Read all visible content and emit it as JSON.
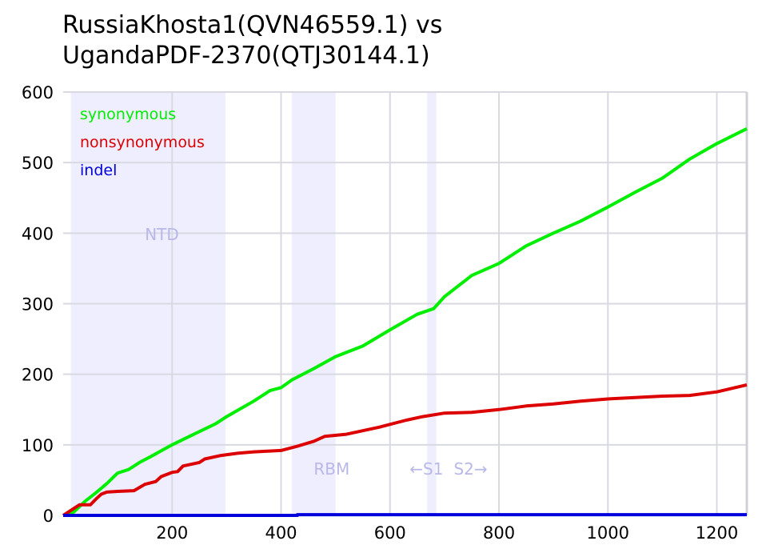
{
  "chart_data": {
    "type": "line",
    "title_lines": [
      "RussiaKhosta1(QVN46559.1) vs",
      "UgandaPDF-2370(QTJ30144.1)"
    ],
    "xlabel": "",
    "ylabel": "",
    "xlim": [
      0,
      1255
    ],
    "ylim": [
      0,
      600
    ],
    "x_ticks": [
      200,
      400,
      600,
      800,
      1000,
      1200
    ],
    "y_ticks": [
      0,
      100,
      200,
      300,
      400,
      500,
      600
    ],
    "grid": true,
    "legend_position": "top-left",
    "regions": [
      {
        "label": "NTD",
        "start": 14,
        "end": 298,
        "label_at": [
          150,
          390
        ]
      },
      {
        "label": "RBM",
        "start": 420,
        "end": 500,
        "label_at": [
          460,
          58
        ]
      },
      {
        "label": "←S1",
        "start": 668,
        "end": 685,
        "label_at": [
          636,
          58
        ]
      },
      {
        "label": "S2→",
        "start": 685,
        "end": 685,
        "label_at": [
          717,
          58
        ]
      }
    ],
    "series": [
      {
        "name": "synonymous",
        "color": "#00ee00",
        "points": [
          [
            0,
            0
          ],
          [
            20,
            5
          ],
          [
            40,
            20
          ],
          [
            60,
            32
          ],
          [
            80,
            45
          ],
          [
            100,
            60
          ],
          [
            120,
            65
          ],
          [
            140,
            75
          ],
          [
            160,
            83
          ],
          [
            200,
            100
          ],
          [
            240,
            115
          ],
          [
            280,
            130
          ],
          [
            300,
            140
          ],
          [
            350,
            162
          ],
          [
            380,
            177
          ],
          [
            400,
            181
          ],
          [
            420,
            192
          ],
          [
            460,
            208
          ],
          [
            500,
            225
          ],
          [
            550,
            240
          ],
          [
            600,
            263
          ],
          [
            650,
            285
          ],
          [
            680,
            293
          ],
          [
            700,
            310
          ],
          [
            750,
            340
          ],
          [
            800,
            357
          ],
          [
            850,
            382
          ],
          [
            900,
            400
          ],
          [
            950,
            417
          ],
          [
            1000,
            437
          ],
          [
            1050,
            458
          ],
          [
            1100,
            478
          ],
          [
            1150,
            505
          ],
          [
            1200,
            527
          ],
          [
            1255,
            548
          ]
        ]
      },
      {
        "name": "nonsynonymous",
        "color": "#dd0000",
        "points": [
          [
            0,
            0
          ],
          [
            20,
            10
          ],
          [
            30,
            15
          ],
          [
            50,
            15
          ],
          [
            60,
            23
          ],
          [
            70,
            30
          ],
          [
            80,
            33
          ],
          [
            100,
            34
          ],
          [
            130,
            35
          ],
          [
            150,
            44
          ],
          [
            170,
            48
          ],
          [
            180,
            55
          ],
          [
            200,
            61
          ],
          [
            210,
            62
          ],
          [
            220,
            70
          ],
          [
            250,
            75
          ],
          [
            260,
            80
          ],
          [
            290,
            85
          ],
          [
            320,
            88
          ],
          [
            350,
            90
          ],
          [
            400,
            92
          ],
          [
            430,
            98
          ],
          [
            460,
            105
          ],
          [
            480,
            112
          ],
          [
            520,
            115
          ],
          [
            550,
            120
          ],
          [
            580,
            125
          ],
          [
            630,
            135
          ],
          [
            660,
            140
          ],
          [
            700,
            145
          ],
          [
            750,
            146
          ],
          [
            800,
            150
          ],
          [
            850,
            155
          ],
          [
            900,
            158
          ],
          [
            950,
            162
          ],
          [
            1000,
            165
          ],
          [
            1050,
            167
          ],
          [
            1100,
            169
          ],
          [
            1150,
            170
          ],
          [
            1200,
            175
          ],
          [
            1255,
            185
          ]
        ]
      },
      {
        "name": "indel",
        "color": "#0000dd",
        "points": [
          [
            0,
            0
          ],
          [
            430,
            0
          ],
          [
            430,
            1
          ],
          [
            1255,
            1
          ]
        ]
      }
    ]
  }
}
